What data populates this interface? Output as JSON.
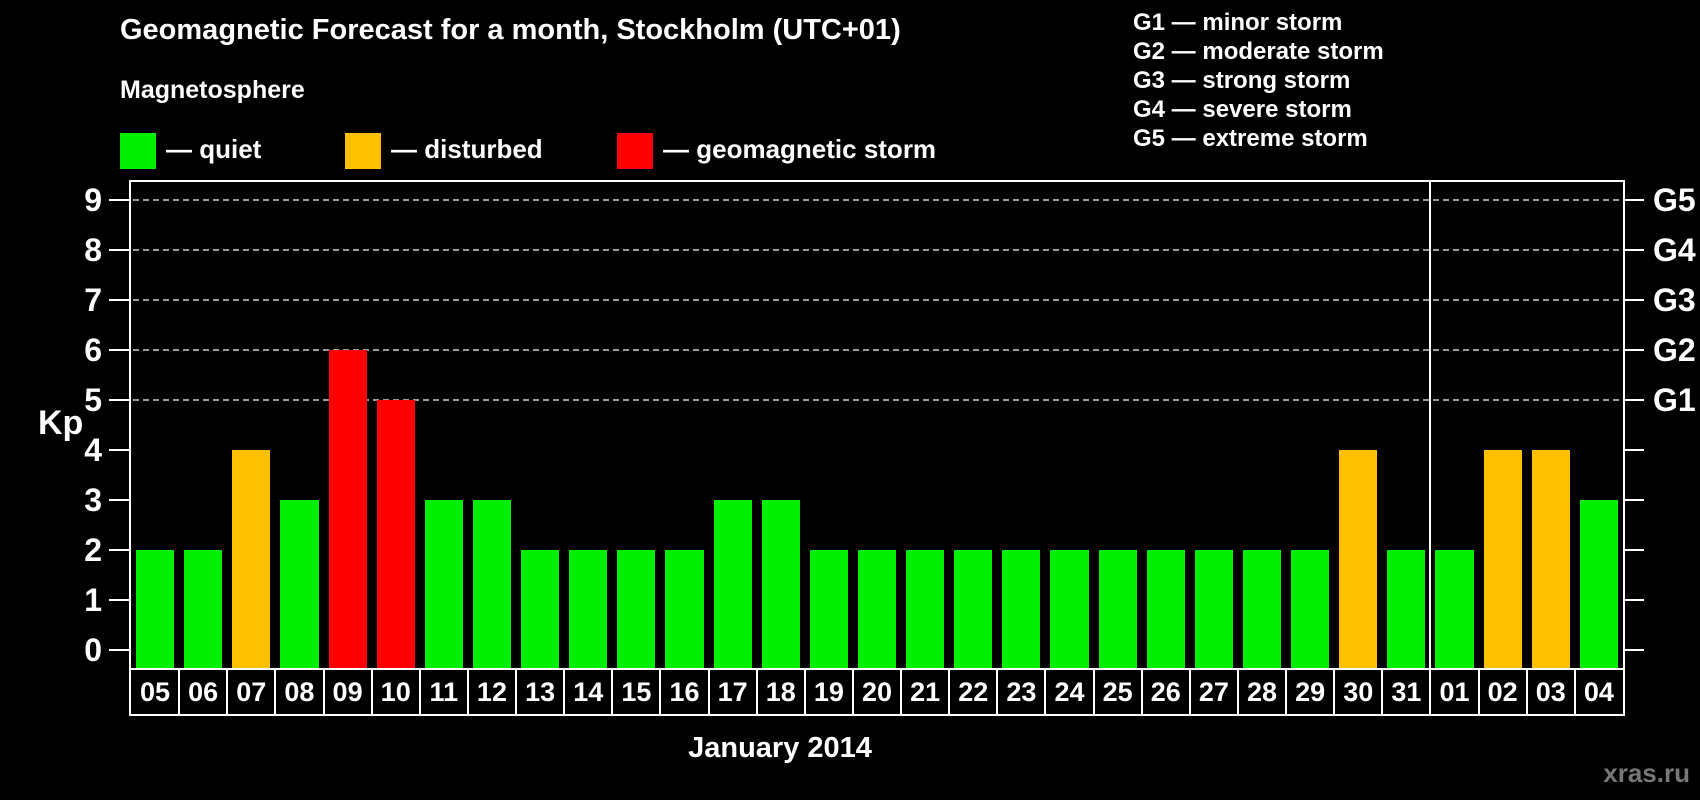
{
  "header": {
    "title": "Geomagnetic Forecast for a month, Stockholm (UTC+01)",
    "subtitle": "Magnetosphere"
  },
  "legend": {
    "items": [
      {
        "key": "quiet",
        "label": "— quiet",
        "color": "#00ee00"
      },
      {
        "key": "disturbed",
        "label": "— disturbed",
        "color": "#ffc000"
      },
      {
        "key": "storm",
        "label": "— geomagnetic storm",
        "color": "#ff0000"
      }
    ]
  },
  "gscale": {
    "items": [
      "G1 — minor storm",
      "G2 — moderate storm",
      "G3 — strong storm",
      "G4 — severe storm",
      "G5 — extreme storm"
    ]
  },
  "axis": {
    "kp_label": "Kp",
    "x_label": "January 2014"
  },
  "chart_data": {
    "type": "bar",
    "title": "Geomagnetic Forecast for a month, Stockholm (UTC+01)",
    "xlabel": "January 2014",
    "ylabel": "Kp",
    "categories": [
      "05",
      "06",
      "07",
      "08",
      "09",
      "10",
      "11",
      "12",
      "13",
      "14",
      "15",
      "16",
      "17",
      "18",
      "19",
      "20",
      "21",
      "22",
      "23",
      "24",
      "25",
      "26",
      "27",
      "28",
      "29",
      "30",
      "31",
      "01",
      "02",
      "03",
      "04"
    ],
    "values": [
      2,
      2,
      4,
      3,
      6,
      5,
      3,
      3,
      2,
      2,
      2,
      2,
      3,
      3,
      2,
      2,
      2,
      2,
      2,
      2,
      2,
      2,
      2,
      2,
      2,
      4,
      2,
      2,
      4,
      4,
      3
    ],
    "statuses": [
      "quiet",
      "quiet",
      "disturbed",
      "quiet",
      "storm",
      "storm",
      "quiet",
      "quiet",
      "quiet",
      "quiet",
      "quiet",
      "quiet",
      "quiet",
      "quiet",
      "quiet",
      "quiet",
      "quiet",
      "quiet",
      "quiet",
      "quiet",
      "quiet",
      "quiet",
      "quiet",
      "quiet",
      "quiet",
      "disturbed",
      "quiet",
      "quiet",
      "disturbed",
      "disturbed",
      "quiet"
    ],
    "colors": {
      "quiet": "#00ee00",
      "disturbed": "#ffc000",
      "storm": "#ff0000"
    },
    "ylim": [
      0,
      9
    ],
    "y_ticks": [
      0,
      1,
      2,
      3,
      4,
      5,
      6,
      7,
      8,
      9
    ],
    "gridlines_at": [
      5,
      6,
      7,
      8,
      9
    ],
    "right_axis": [
      {
        "kp": 5,
        "label": "G1"
      },
      {
        "kp": 6,
        "label": "G2"
      },
      {
        "kp": 7,
        "label": "G3"
      },
      {
        "kp": 8,
        "label": "G4"
      },
      {
        "kp": 9,
        "label": "G5"
      }
    ],
    "month_separator_index": 27,
    "grid": "dashed horizontal lines at G storm levels only",
    "legend_position": "top-left"
  },
  "watermark": "xras.ru"
}
